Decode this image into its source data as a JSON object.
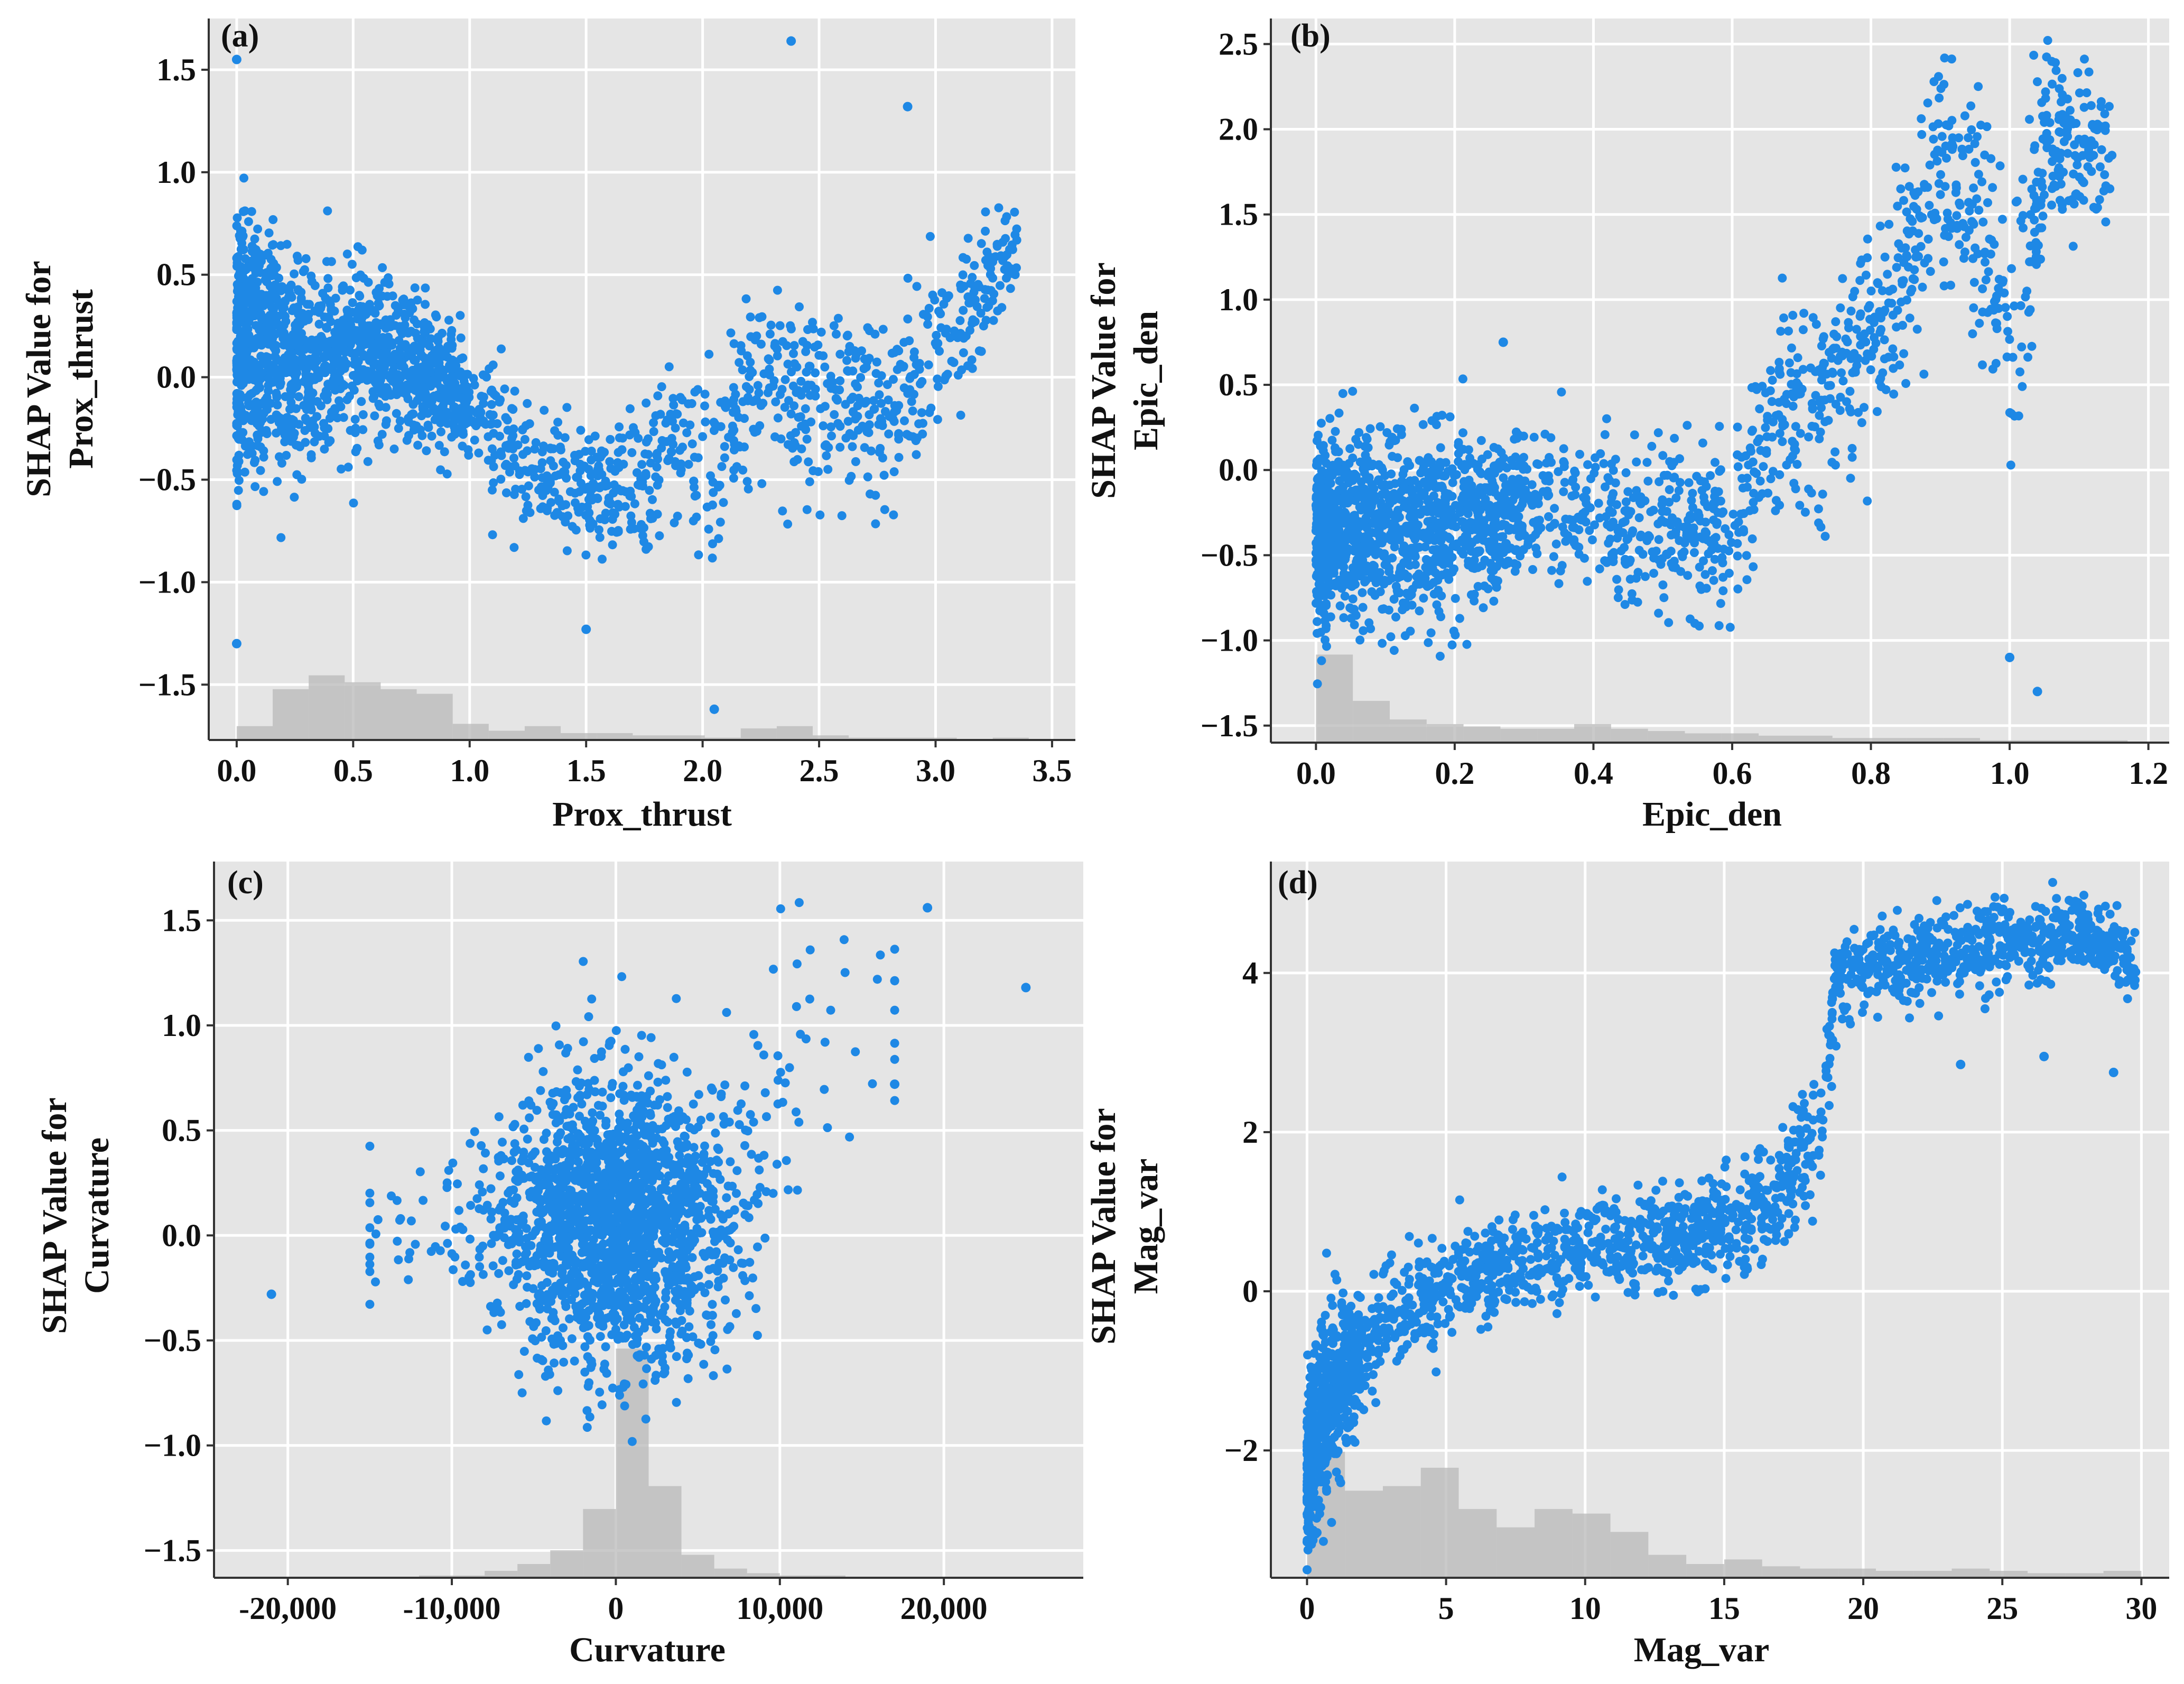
{
  "colors": {
    "panel_bg": "#e5e5e5",
    "grid": "#ffffff",
    "points": "#1e88e5",
    "hist": "#b8b8b8",
    "axis": "#333333"
  },
  "chart_data": [
    {
      "type": "scatter",
      "panel_label": "(a)",
      "xlabel": "Prox_thrust",
      "ylabel_line1": "SHAP Value for",
      "ylabel_line2": "Prox_thrust",
      "xlim": [
        -0.12,
        3.6
      ],
      "ylim": [
        -1.77,
        1.75
      ],
      "xticks": [
        0.0,
        0.5,
        1.0,
        1.5,
        2.0,
        2.5,
        3.0,
        3.5
      ],
      "xtick_labels": [
        "0.0",
        "0.5",
        "1.0",
        "1.5",
        "2.0",
        "2.5",
        "3.0",
        "3.5"
      ],
      "yticks": [
        -1.5,
        -1.0,
        -0.5,
        0.0,
        0.5,
        1.0,
        1.5
      ],
      "ytick_labels": [
        "−1.5",
        "−1.0",
        "−0.5",
        "0.0",
        "0.5",
        "1.0",
        "1.5"
      ],
      "trend_points": [
        [
          0.0,
          0.15
        ],
        [
          0.05,
          0.2
        ],
        [
          0.3,
          0.05
        ],
        [
          0.5,
          0.15
        ],
        [
          0.7,
          0.1
        ],
        [
          1.0,
          -0.15
        ],
        [
          1.2,
          -0.45
        ],
        [
          1.5,
          -0.55
        ],
        [
          1.7,
          -0.55
        ],
        [
          1.9,
          -0.25
        ],
        [
          2.05,
          -0.5
        ],
        [
          2.2,
          0.0
        ],
        [
          2.5,
          -0.1
        ],
        [
          2.8,
          -0.15
        ],
        [
          3.0,
          0.1
        ],
        [
          3.35,
          0.65
        ]
      ],
      "spread_points": [
        [
          0.0,
          0.6
        ],
        [
          0.3,
          0.35
        ],
        [
          0.6,
          0.3
        ],
        [
          1.0,
          0.25
        ],
        [
          1.5,
          0.25
        ],
        [
          2.0,
          0.35
        ],
        [
          2.5,
          0.4
        ],
        [
          3.0,
          0.35
        ],
        [
          3.35,
          0.2
        ]
      ],
      "outliers": [
        [
          2.38,
          1.64
        ],
        [
          2.88,
          1.32
        ],
        [
          0.0,
          1.55
        ],
        [
          2.05,
          -1.62
        ],
        [
          0.0,
          -1.3
        ],
        [
          1.5,
          -1.23
        ]
      ],
      "histogram": [
        0.06,
        0.22,
        0.28,
        0.25,
        0.22,
        0.2,
        0.07,
        0.04,
        0.06,
        0.03,
        0.03,
        0.02,
        0.02,
        0.01,
        0.05,
        0.06,
        0.02,
        0.01,
        0.01,
        0.01,
        0.0,
        0.01
      ],
      "hist_range": [
        0.0,
        3.4
      ]
    },
    {
      "type": "scatter",
      "panel_label": "(b)",
      "xlabel": "Epic_den",
      "ylabel_line1": "SHAP Value for",
      "ylabel_line2": "Epic_den",
      "xlim": [
        -0.065,
        1.23
      ],
      "ylim": [
        -1.6,
        2.65
      ],
      "xticks": [
        0.0,
        0.2,
        0.4,
        0.6,
        0.8,
        1.0,
        1.2
      ],
      "xtick_labels": [
        "0.0",
        "0.2",
        "0.4",
        "0.6",
        "0.8",
        "1.0",
        "1.2"
      ],
      "yticks": [
        -1.5,
        -1.0,
        -0.5,
        0.0,
        0.5,
        1.0,
        1.5,
        2.0,
        2.5
      ],
      "ytick_labels": [
        "−1.5",
        "−1.0",
        "−0.5",
        "0.0",
        "0.5",
        "1.0",
        "1.5",
        "2.0",
        "2.5"
      ],
      "trend_points": [
        [
          0.0,
          -0.35
        ],
        [
          0.1,
          -0.35
        ],
        [
          0.25,
          -0.3
        ],
        [
          0.3,
          -0.2
        ],
        [
          0.45,
          -0.35
        ],
        [
          0.6,
          -0.35
        ],
        [
          0.65,
          0.2
        ],
        [
          0.75,
          0.5
        ],
        [
          0.85,
          1.2
        ],
        [
          0.9,
          1.8
        ],
        [
          0.95,
          1.6
        ],
        [
          1.0,
          0.8
        ],
        [
          1.05,
          1.9
        ],
        [
          1.15,
          1.9
        ]
      ],
      "spread_points": [
        [
          0.0,
          0.5
        ],
        [
          0.3,
          0.35
        ],
        [
          0.6,
          0.4
        ],
        [
          0.7,
          0.5
        ],
        [
          0.85,
          0.5
        ],
        [
          1.0,
          0.6
        ],
        [
          1.15,
          0.3
        ]
      ],
      "outliers": [
        [
          1.04,
          -1.3
        ],
        [
          1.0,
          -1.1
        ],
        [
          0.27,
          0.75
        ]
      ],
      "histogram": [
        0.38,
        0.18,
        0.1,
        0.08,
        0.07,
        0.06,
        0.06,
        0.08,
        0.06,
        0.05,
        0.04,
        0.04,
        0.03,
        0.03,
        0.02,
        0.02,
        0.02,
        0.02,
        0.01,
        0.01,
        0.01,
        0.01
      ],
      "hist_range": [
        0.0,
        1.17
      ]
    },
    {
      "type": "scatter",
      "panel_label": "(c)",
      "xlabel": "Curvature",
      "ylabel_line1": "SHAP Value for",
      "ylabel_line2": "Curvature",
      "xlim": [
        -24500,
        28500
      ],
      "ylim": [
        -1.63,
        1.78
      ],
      "xticks": [
        -20000,
        -10000,
        0,
        10000,
        20000
      ],
      "xtick_labels": [
        "-20,000",
        "-10,000",
        "0",
        "10,000",
        "20,000"
      ],
      "yticks": [
        -1.5,
        -1.0,
        -0.5,
        0.0,
        0.5,
        1.0,
        1.5
      ],
      "ytick_labels": [
        "−1.5",
        "−1.0",
        "−0.5",
        "0.0",
        "0.5",
        "1.0",
        "1.5"
      ],
      "trend_points": [
        [
          -12000,
          0.0
        ],
        [
          -6000,
          0.05
        ],
        [
          -2000,
          0.1
        ],
        [
          0,
          0.05
        ],
        [
          2000,
          0.05
        ],
        [
          6000,
          0.05
        ],
        [
          9000,
          0.3
        ],
        [
          11000,
          0.9
        ],
        [
          15000,
          1.0
        ]
      ],
      "spread_points": [
        [
          -12000,
          0.3
        ],
        [
          -5000,
          0.5
        ],
        [
          0,
          0.6
        ],
        [
          5000,
          0.55
        ],
        [
          10000,
          0.7
        ],
        [
          15000,
          0.5
        ]
      ],
      "outliers": [
        [
          25000,
          1.18
        ],
        [
          -21000,
          -0.28
        ],
        [
          19000,
          1.56
        ],
        [
          17000,
          0.72
        ]
      ],
      "histogram": [
        0.0,
        0.0,
        0.0,
        0.0,
        0.0,
        0.01,
        0.01,
        0.03,
        0.06,
        0.12,
        0.3,
        1.0,
        0.4,
        0.1,
        0.04,
        0.02,
        0.01,
        0.01,
        0.0,
        0.0,
        0.0,
        0.0
      ],
      "hist_range": [
        -22000,
        22000
      ]
    },
    {
      "type": "scatter",
      "panel_label": "(d)",
      "xlabel": "Mag_var",
      "ylabel_line1": "SHAP Value for",
      "ylabel_line2": "Mag_var",
      "xlim": [
        -1.3,
        31.0
      ],
      "ylim": [
        -3.6,
        5.4
      ],
      "xticks": [
        0,
        5,
        10,
        15,
        20,
        25,
        30
      ],
      "xtick_labels": [
        "0",
        "5",
        "10",
        "15",
        "20",
        "25",
        "30"
      ],
      "yticks": [
        -2,
        0,
        2,
        4
      ],
      "ytick_labels": [
        "−2",
        "0",
        "2",
        "4"
      ],
      "trend_points": [
        [
          0.0,
          -2.2
        ],
        [
          1.0,
          -1.2
        ],
        [
          3.0,
          -0.3
        ],
        [
          5.0,
          0.0
        ],
        [
          7.0,
          0.3
        ],
        [
          10.0,
          0.5
        ],
        [
          14.0,
          0.7
        ],
        [
          17.0,
          1.2
        ],
        [
          18.5,
          2.0
        ],
        [
          19.0,
          4.0
        ],
        [
          22.0,
          4.2
        ],
        [
          25.0,
          4.4
        ],
        [
          28.0,
          4.5
        ],
        [
          29.8,
          4.1
        ]
      ],
      "spread_points": [
        [
          0.0,
          1.1
        ],
        [
          2.0,
          0.6
        ],
        [
          5.0,
          0.5
        ],
        [
          10.0,
          0.5
        ],
        [
          15.0,
          0.5
        ],
        [
          18.0,
          0.7
        ],
        [
          20.0,
          0.4
        ],
        [
          25.0,
          0.45
        ],
        [
          29.8,
          0.35
        ]
      ],
      "outliers": [
        [
          29.0,
          2.75
        ],
        [
          23.5,
          2.85
        ],
        [
          26.5,
          2.95
        ]
      ],
      "histogram": [
        0.55,
        0.38,
        0.4,
        0.48,
        0.3,
        0.22,
        0.3,
        0.28,
        0.2,
        0.1,
        0.06,
        0.08,
        0.05,
        0.04,
        0.04,
        0.03,
        0.03,
        0.04,
        0.03,
        0.02,
        0.02,
        0.03
      ],
      "hist_range": [
        0.0,
        30.0
      ]
    }
  ]
}
